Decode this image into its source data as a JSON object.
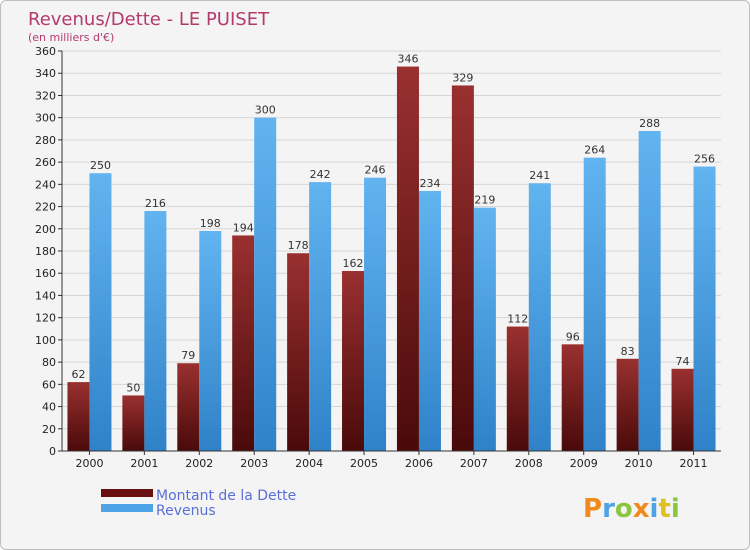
{
  "chart_data": {
    "type": "bar",
    "title": "Revenus/Dette - LE PUISET",
    "subtitle": "(en milliers d'€)",
    "categories": [
      "2000",
      "2001",
      "2002",
      "2003",
      "2004",
      "2005",
      "2006",
      "2007",
      "2008",
      "2009",
      "2010",
      "2011"
    ],
    "series": [
      {
        "name": "Montant de la Dette",
        "values": [
          62,
          50,
          79,
          194,
          178,
          162,
          346,
          329,
          112,
          96,
          83,
          74
        ],
        "color": "#7a1c1c"
      },
      {
        "name": "Revenus",
        "values": [
          250,
          216,
          198,
          300,
          242,
          246,
          234,
          219,
          241,
          264,
          288,
          256
        ],
        "color": "#4da3e6"
      }
    ],
    "ylim": [
      0,
      360
    ],
    "yticks": [
      0,
      20,
      40,
      60,
      80,
      100,
      120,
      140,
      160,
      180,
      200,
      220,
      240,
      260,
      280,
      300,
      320,
      340,
      360
    ],
    "xlabel": "",
    "ylabel": "",
    "grid": true,
    "legend": "bottom-left"
  },
  "brand": {
    "letters": [
      "P",
      "r",
      "o",
      "x",
      "i",
      "t",
      "i"
    ],
    "colors": [
      "#f08a1c",
      "#4da3e6",
      "#8cc63f",
      "#f08a1c",
      "#4da3e6",
      "#e0c020",
      "#8cc63f"
    ]
  }
}
